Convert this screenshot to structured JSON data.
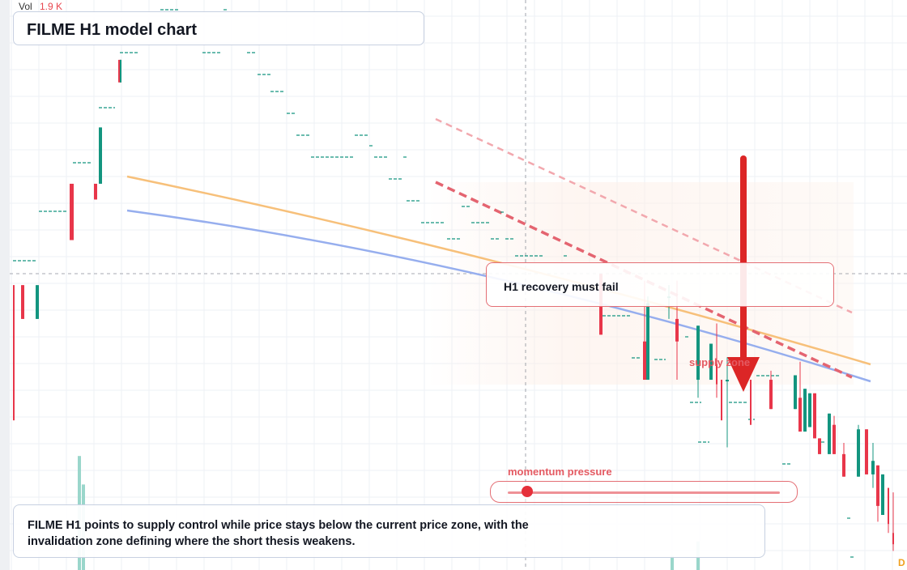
{
  "header": {
    "volume_label": "Vol",
    "volume_value": "1.9 K"
  },
  "title": "FILME H1 model chart",
  "callout": {
    "text": "H1 recovery must fail"
  },
  "zone_label": "supply zone",
  "momentum": {
    "label": "momentum pressure",
    "level": 0.07
  },
  "summary": "FILME H1 points to supply control while price stays below the current price zone, with the invalidation zone defining where the short thesis weakens.",
  "corner_badge": "D",
  "colors": {
    "bull": "#13957f",
    "bear": "#e8364a",
    "volume_bull": "#8fd1c5",
    "ema_fast": "#f7c07a",
    "ema_slow": "#96aeee",
    "trendline": "#e46470",
    "arrow": "#dc2626",
    "grid": "#eef1f5"
  },
  "chart_data": {
    "type": "candlestick",
    "timeframe": "H1",
    "title": "FILME H1 model chart",
    "candles": [
      {
        "o": 6.2,
        "h": 6.2,
        "l": 5.6,
        "c": 5.6
      },
      {
        "o": 6.2,
        "h": 6.2,
        "l": 6.05,
        "c": 6.05
      },
      {
        "o": 6.05,
        "h": 6.2,
        "l": 6.05,
        "c": 6.2
      },
      {
        "o": 6.65,
        "h": 6.65,
        "l": 6.4,
        "c": 6.4
      },
      {
        "o": 6.65,
        "h": 6.65,
        "l": 6.58,
        "c": 6.58
      },
      {
        "o": 6.65,
        "h": 6.9,
        "l": 6.65,
        "c": 6.9
      },
      {
        "o": 7.2,
        "h": 7.2,
        "l": 7.1,
        "c": 7.1
      },
      {
        "o": 7.1,
        "h": 7.2,
        "l": 7.1,
        "c": 7.2
      },
      {
        "o": 6.25,
        "h": 6.25,
        "l": 5.98,
        "c": 5.98
      },
      {
        "o": 5.95,
        "h": 6.22,
        "l": 5.78,
        "c": 5.78
      },
      {
        "o": 5.78,
        "h": 6.15,
        "l": 5.78,
        "c": 6.12
      },
      {
        "o": 6.15,
        "h": 6.2,
        "l": 6.05,
        "c": 6.15
      },
      {
        "o": 6.05,
        "h": 6.22,
        "l": 5.78,
        "c": 5.95
      },
      {
        "o": 5.78,
        "h": 6.02,
        "l": 5.7,
        "c": 6.02
      },
      {
        "o": 5.78,
        "h": 5.94,
        "l": 5.78,
        "c": 5.94
      },
      {
        "o": 5.85,
        "h": 6.03,
        "l": 5.7,
        "c": 5.76
      },
      {
        "o": 5.78,
        "h": 5.78,
        "l": 5.6,
        "c": 5.6
      },
      {
        "o": 5.78,
        "h": 5.88,
        "l": 5.48,
        "c": 5.78
      },
      {
        "o": 5.78,
        "h": 5.78,
        "l": 5.58,
        "c": 5.58
      },
      {
        "o": 5.78,
        "h": 5.82,
        "l": 5.65,
        "c": 5.65
      },
      {
        "o": 5.65,
        "h": 5.8,
        "l": 5.65,
        "c": 5.8
      },
      {
        "o": 5.7,
        "h": 5.86,
        "l": 5.55,
        "c": 5.55
      },
      {
        "o": 5.55,
        "h": 5.74,
        "l": 5.55,
        "c": 5.74
      },
      {
        "o": 5.57,
        "h": 5.72,
        "l": 5.57,
        "c": 5.72
      },
      {
        "o": 5.72,
        "h": 5.72,
        "l": 5.52,
        "c": 5.52
      },
      {
        "o": 5.52,
        "h": 5.52,
        "l": 5.45,
        "c": 5.45
      },
      {
        "o": 5.45,
        "h": 5.63,
        "l": 5.45,
        "c": 5.63
      },
      {
        "o": 5.58,
        "h": 5.62,
        "l": 5.45,
        "c": 5.45
      },
      {
        "o": 5.45,
        "h": 5.5,
        "l": 5.35,
        "c": 5.35
      },
      {
        "o": 5.35,
        "h": 5.58,
        "l": 5.35,
        "c": 5.56
      },
      {
        "o": 5.56,
        "h": 5.56,
        "l": 5.36,
        "c": 5.36
      },
      {
        "o": 5.36,
        "h": 5.5,
        "l": 5.3,
        "c": 5.42
      },
      {
        "o": 5.4,
        "h": 5.4,
        "l": 5.15,
        "c": 5.22
      },
      {
        "o": 5.18,
        "h": 5.36,
        "l": 5.18,
        "c": 5.36
      },
      {
        "o": 5.3,
        "h": 5.3,
        "l": 5.1,
        "c": 5.14
      },
      {
        "o": 5.1,
        "h": 5.28,
        "l": 5.02,
        "c": 5.05
      }
    ],
    "volume_bars": [
      0.16,
      0.12,
      0.02,
      0.0,
      0.0,
      0.04,
      0.0,
      0.0,
      0.0,
      0.0
    ],
    "moving_averages": [
      {
        "label": "EMA fast",
        "color": "#f7c07a"
      },
      {
        "label": "EMA slow",
        "color": "#96aeee"
      }
    ],
    "annotations": [
      {
        "type": "callout",
        "text": "H1 recovery must fail"
      },
      {
        "type": "zone",
        "text": "supply zone"
      },
      {
        "type": "arrow",
        "direction": "down"
      },
      {
        "type": "meter",
        "text": "momentum pressure",
        "value": 0.07
      }
    ],
    "grid": true,
    "legend": "none"
  }
}
